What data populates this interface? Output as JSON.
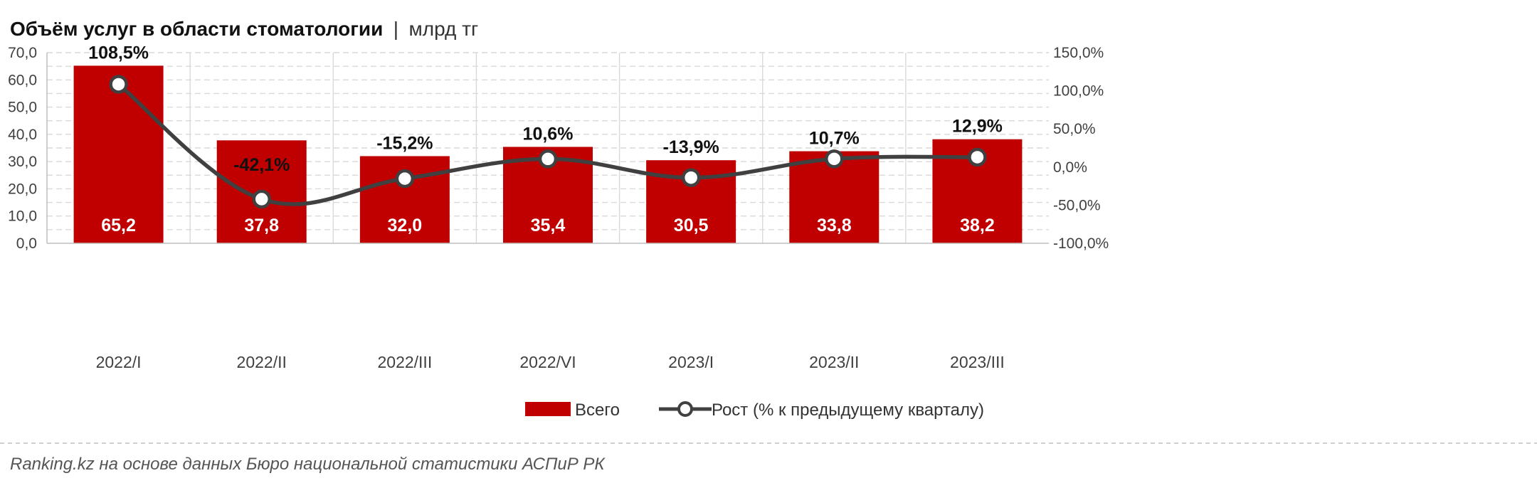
{
  "title": {
    "main": "Объём услуг в области стоматологии",
    "separator": "|",
    "unit": "млрд тг"
  },
  "colors": {
    "bar": "#C00000",
    "line": "#404040",
    "marker_fill": "#ffffff",
    "grid": "#d9d9d9"
  },
  "chart_data": {
    "type": "bar",
    "categories": [
      "2022/I",
      "2022/II",
      "2022/III",
      "2022/VI",
      "2023/I",
      "2023/II",
      "2023/III"
    ],
    "series": [
      {
        "name": "Всего",
        "type": "bar",
        "axis": "left",
        "values": [
          65.2,
          37.8,
          32.0,
          35.4,
          30.5,
          33.8,
          38.2
        ],
        "labels": [
          "65,2",
          "37,8",
          "32,0",
          "35,4",
          "30,5",
          "33,8",
          "38,2"
        ]
      },
      {
        "name": "Рост (% к предыдущему кварталу)",
        "type": "line",
        "axis": "right",
        "values": [
          108.5,
          -42.1,
          -15.2,
          10.6,
          -13.9,
          10.7,
          12.9
        ],
        "labels": [
          "108,5%",
          "-42,1%",
          "-15,2%",
          "10,6%",
          "-13,9%",
          "10,7%",
          "12,9%"
        ]
      }
    ],
    "y_left": {
      "ylim": [
        0,
        70
      ],
      "ticks": [
        0,
        10,
        20,
        30,
        40,
        50,
        60,
        70
      ],
      "tick_labels": [
        "0,0",
        "10,0",
        "20,0",
        "30,0",
        "40,0",
        "50,0",
        "60,0",
        "70,0"
      ]
    },
    "y_right": {
      "ylim": [
        -100,
        150
      ],
      "ticks": [
        -100,
        -50,
        0,
        50,
        100,
        150
      ],
      "tick_labels": [
        "-100,0%",
        "-50,0%",
        "0,0%",
        "50,0%",
        "100,0%",
        "150,0%"
      ]
    },
    "grid": true,
    "legend_position": "bottom-center"
  },
  "source": "Ranking.kz на основе данных Бюро национальной статистики АСПиР РК"
}
